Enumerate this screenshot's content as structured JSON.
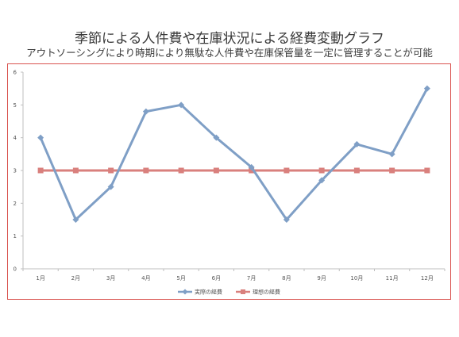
{
  "chart_data": {
    "type": "line",
    "title": "季節による人件費や在庫状況による経費変動グラフ",
    "subtitle": "アウトソーシングにより時期により無駄な人件費や在庫保管量を一定に管理することが可能",
    "categories": [
      "1月",
      "2月",
      "3月",
      "4月",
      "5月",
      "6月",
      "7月",
      "8月",
      "9月",
      "10月",
      "11月",
      "12月"
    ],
    "series": [
      {
        "name": "実際の経費",
        "color": "#7f9fc6",
        "marker": "diamond",
        "values": [
          4,
          1.5,
          2.5,
          4.8,
          5,
          4,
          3.1,
          1.5,
          2.7,
          3.8,
          3.5,
          5.5
        ]
      },
      {
        "name": "理想の経費",
        "color": "#d9807d",
        "marker": "square",
        "values": [
          3,
          3,
          3,
          3,
          3,
          3,
          3,
          3,
          3,
          3,
          3,
          3
        ]
      }
    ],
    "ylim": [
      0,
      6
    ],
    "yticks": [
      0,
      1,
      2,
      3,
      4,
      5,
      6
    ],
    "xlabel": "",
    "ylabel": "",
    "grid": false,
    "legend_position": "bottom"
  }
}
